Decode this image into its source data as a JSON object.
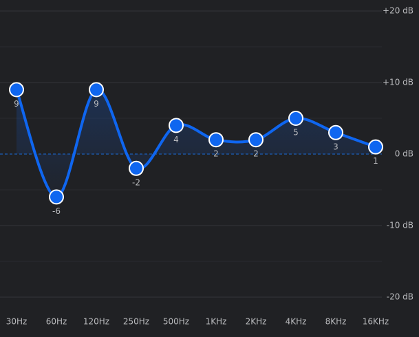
{
  "chart_data": {
    "type": "line",
    "categories": [
      "30Hz",
      "60Hz",
      "120Hz",
      "250Hz",
      "500Hz",
      "1KHz",
      "2KHz",
      "4KHz",
      "8KHz",
      "16KHz"
    ],
    "series": [
      {
        "color": "#0f66f0",
        "values": [
          9,
          -6,
          9,
          -2,
          4,
          2,
          2,
          5,
          3,
          1
        ]
      }
    ],
    "ylim": [
      -20,
      20
    ],
    "yticks": [
      {
        "value": 20,
        "label": "+20 dB"
      },
      {
        "value": 10,
        "label": "+10 dB"
      },
      {
        "value": 0,
        "label": "0 dB"
      },
      {
        "value": -10,
        "label": "-10 dB"
      },
      {
        "value": -20,
        "label": "-20 dB"
      }
    ],
    "minor_yticks": [
      15,
      5,
      -5,
      -15
    ],
    "grid": true
  }
}
